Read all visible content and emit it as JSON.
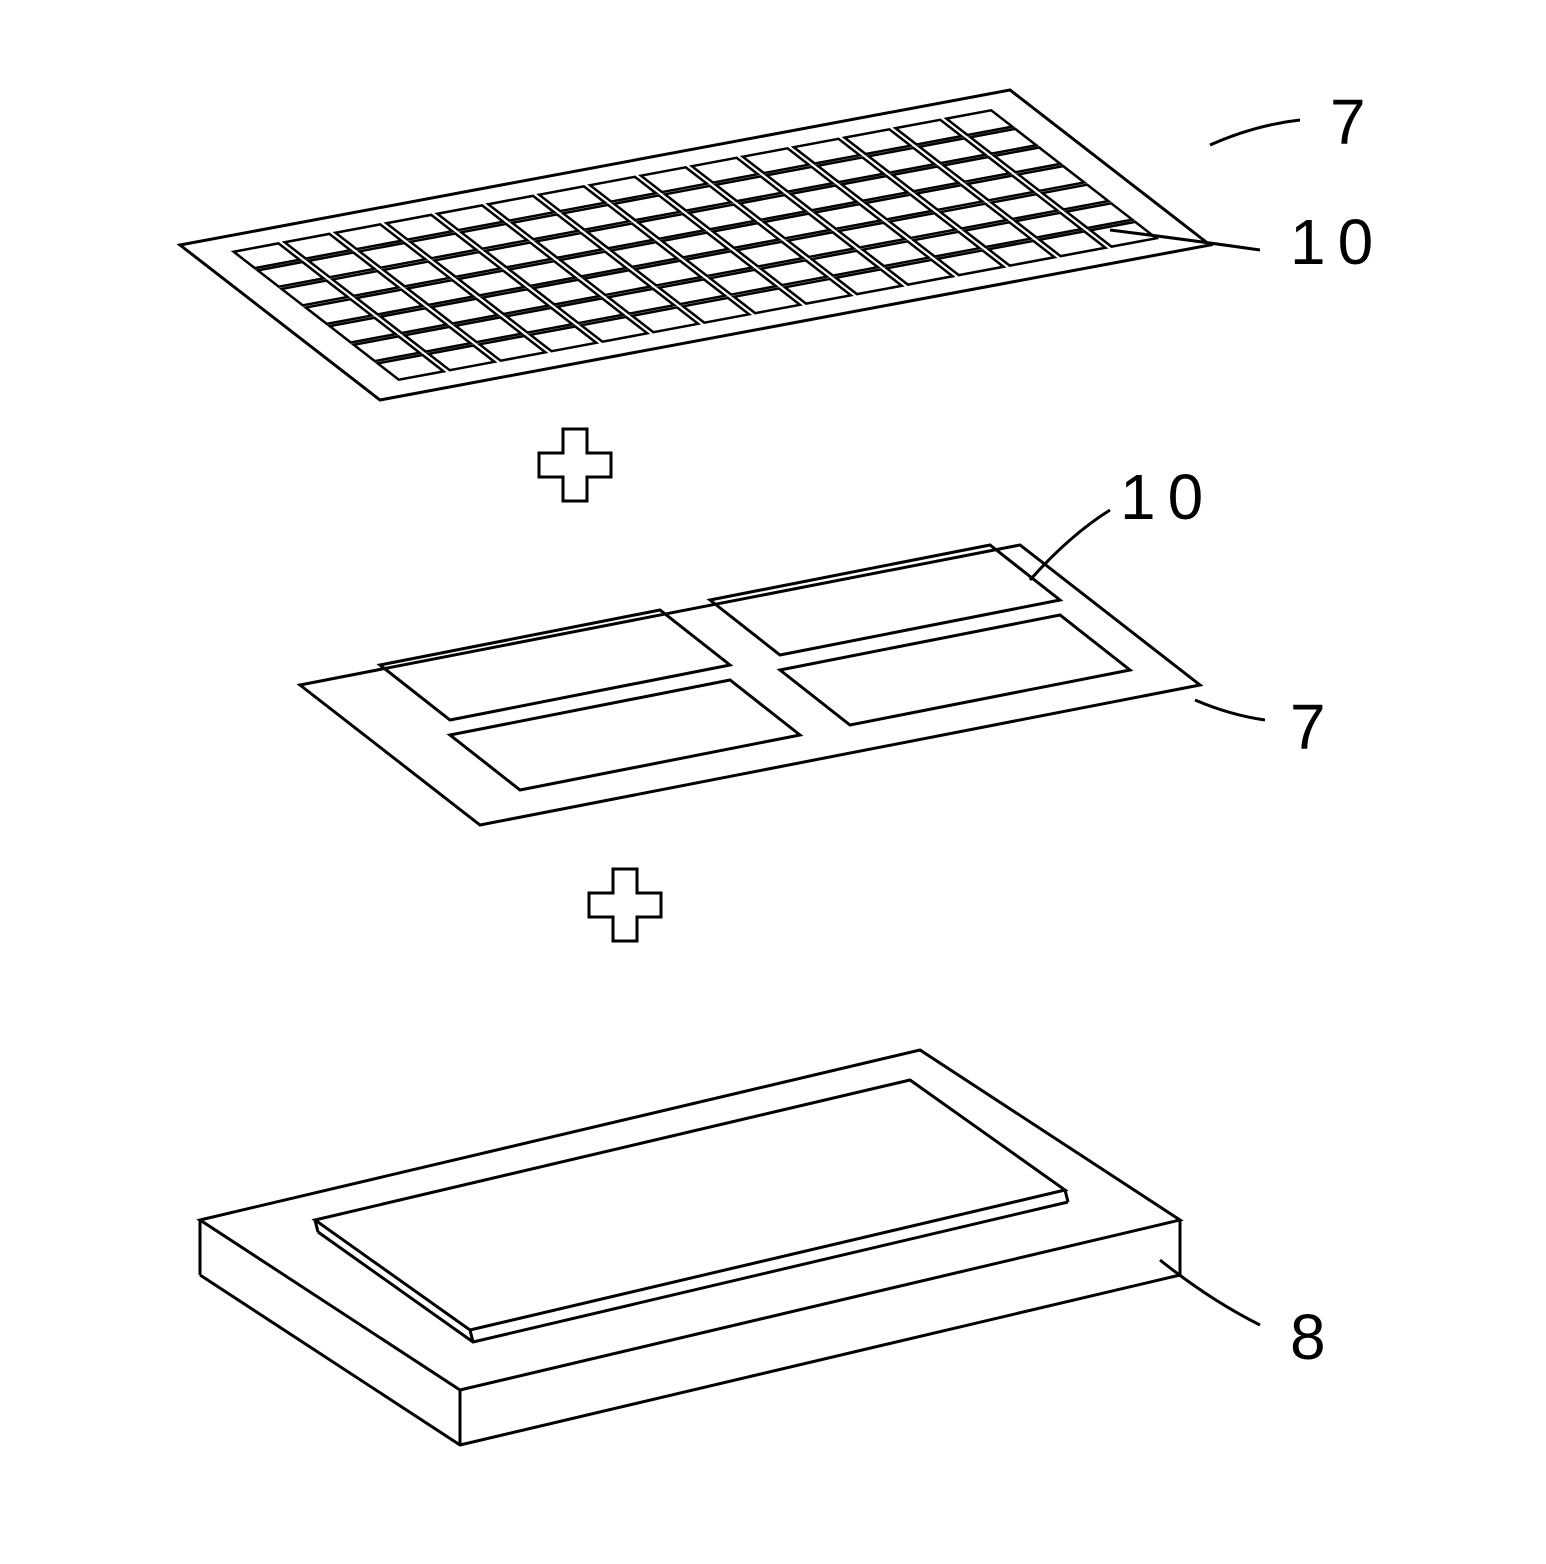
{
  "diagram": {
    "type": "exploded-assembly",
    "background_color": "#ffffff",
    "stroke_color": "#000000",
    "stroke_width": 3,
    "layers": [
      {
        "id": "top-mesh-plate",
        "label_ref": "7",
        "element_label_ref": "10",
        "grid": {
          "cols": 15,
          "rows": 7
        },
        "shape": "parallelogram-plate"
      },
      {
        "id": "mid-quad-plate",
        "label_ref": "7",
        "element_label_ref": "10",
        "grid": {
          "cols": 2,
          "rows": 2
        },
        "shape": "parallelogram-plate"
      },
      {
        "id": "bottom-tray",
        "label_ref": "8",
        "shape": "frame-tray"
      }
    ],
    "connectors": {
      "symbol": "plus-cross",
      "count": 2
    },
    "labels": {
      "7": "7",
      "8": "8",
      "10": "10"
    },
    "label_font_size": 64,
    "leader_line_width": 3
  }
}
